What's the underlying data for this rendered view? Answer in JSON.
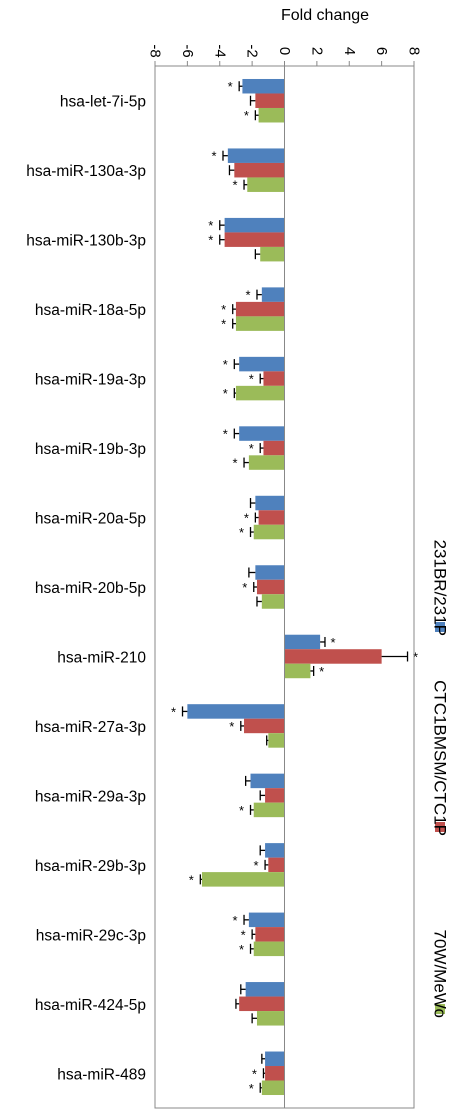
{
  "chart_data": {
    "type": "bar",
    "orientation": "horizontal",
    "title": "",
    "xlabel": "Fold change",
    "ylabel": "",
    "xlim": [
      -8,
      8
    ],
    "xticks": [
      -8,
      -6,
      -4,
      -2,
      0,
      2,
      4,
      6,
      8
    ],
    "xtick_labels": [
      "-8",
      "-6",
      "-4",
      "-2",
      "0",
      "2",
      "4",
      "6",
      "8"
    ],
    "grid": false,
    "legend_position": "right",
    "categories": [
      "hsa-let-7i-5p",
      "hsa-miR-130a-3p",
      "hsa-miR-130b-3p",
      "hsa-miR-18a-5p",
      "hsa-miR-19a-3p",
      "hsa-miR-19b-3p",
      "hsa-miR-20a-5p",
      "hsa-miR-20b-5p",
      "hsa-miR-210",
      "hsa-miR-27a-3p",
      "hsa-miR-29a-3p",
      "hsa-miR-29b-3p",
      "hsa-miR-29c-3p",
      "hsa-miR-424-5p",
      "hsa-miR-489"
    ],
    "series": [
      {
        "name": "231BR/231P",
        "color": "#4f81bd",
        "values": [
          -2.6,
          -3.5,
          -3.7,
          -1.4,
          -2.8,
          -2.8,
          -1.8,
          -1.8,
          2.2,
          -6.0,
          -2.1,
          -1.2,
          -2.2,
          -2.4,
          -1.2
        ],
        "errors": [
          0.2,
          0.3,
          0.3,
          0.3,
          0.3,
          0.3,
          0.3,
          0.4,
          0.3,
          0.3,
          0.3,
          0.3,
          0.3,
          0.3,
          0.2
        ],
        "significant": [
          true,
          true,
          true,
          true,
          true,
          true,
          false,
          false,
          true,
          true,
          false,
          false,
          true,
          false,
          false
        ]
      },
      {
        "name": "CTC1BMSM/CTC1P",
        "color": "#c0504d",
        "values": [
          -1.8,
          -3.1,
          -3.7,
          -3.0,
          -1.3,
          -1.3,
          -1.6,
          -1.7,
          6.0,
          -2.5,
          -1.2,
          -1.0,
          -1.8,
          -2.8,
          -1.2
        ],
        "errors": [
          0.3,
          0.3,
          0.3,
          0.2,
          0.2,
          0.2,
          0.2,
          0.2,
          1.6,
          0.2,
          0.3,
          0.2,
          0.2,
          0.2,
          0.1
        ],
        "significant": [
          false,
          false,
          true,
          true,
          true,
          true,
          true,
          true,
          true,
          true,
          false,
          true,
          true,
          false,
          true
        ]
      },
      {
        "name": "70W/MeWo",
        "color": "#9bbb59",
        "values": [
          -1.6,
          -2.3,
          -1.5,
          -3.0,
          -3.0,
          -2.2,
          -1.9,
          -1.4,
          1.6,
          -1.0,
          -1.9,
          -5.1,
          -1.9,
          -1.7,
          -1.4
        ],
        "errors": [
          0.2,
          0.2,
          0.3,
          0.2,
          0.1,
          0.3,
          0.2,
          0.3,
          0.2,
          0.1,
          0.2,
          0.1,
          0.2,
          0.3,
          0.1
        ],
        "significant": [
          true,
          true,
          false,
          true,
          true,
          true,
          true,
          false,
          true,
          false,
          true,
          true,
          true,
          false,
          true
        ]
      }
    ],
    "significance_marker": "*"
  }
}
